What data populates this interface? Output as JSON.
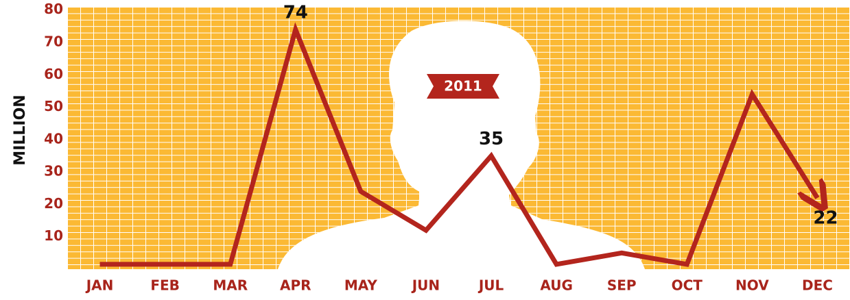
{
  "chart_data": {
    "type": "line",
    "badge": "2011",
    "ylabel": "MILLION",
    "categories": [
      "JAN",
      "FEB",
      "MAR",
      "APR",
      "MAY",
      "JUN",
      "JUL",
      "AUG",
      "SEP",
      "OCT",
      "NOV",
      "DEC"
    ],
    "values": [
      1.5,
      1.5,
      1.5,
      74,
      24,
      12,
      35,
      1.5,
      5,
      1.5,
      54,
      22
    ],
    "value_labels": [
      null,
      null,
      null,
      "74",
      null,
      null,
      "35",
      null,
      null,
      null,
      null,
      "22"
    ],
    "color": "#b3251d",
    "ylim": [
      0,
      81
    ],
    "yticks": [
      10,
      20,
      30,
      40,
      50,
      60,
      70,
      80
    ]
  }
}
